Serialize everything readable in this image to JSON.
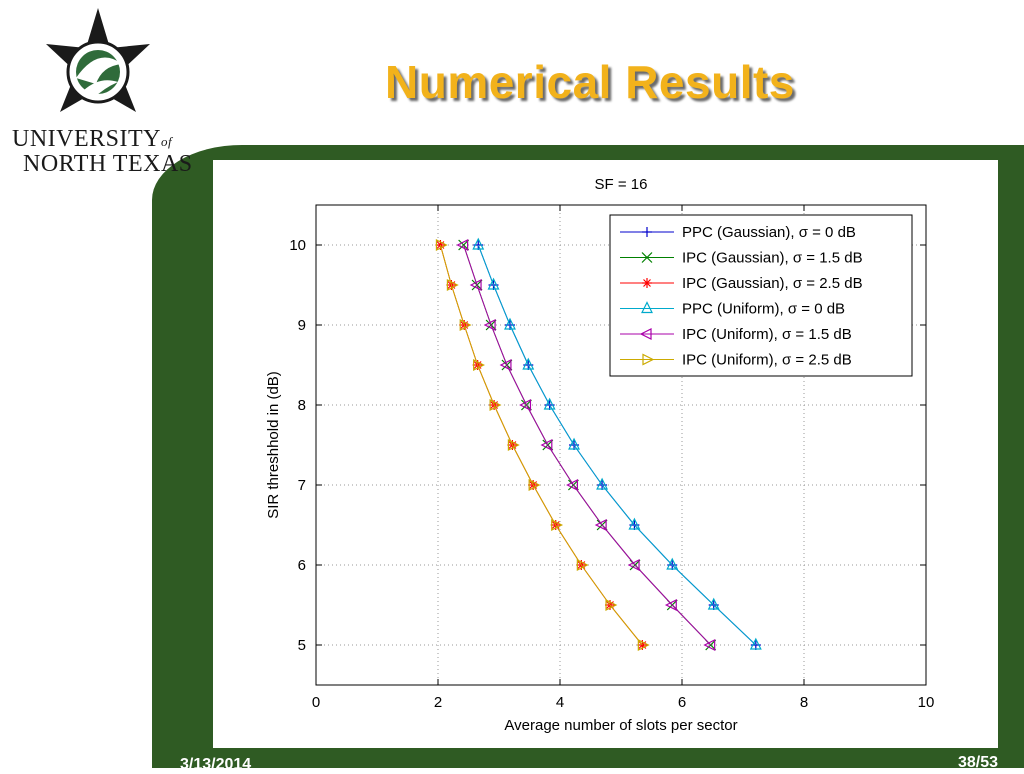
{
  "slide": {
    "title": "Numerical Results",
    "date": "3/13/2014",
    "page": "38/53"
  },
  "logo": {
    "line1_a": "UNIVERSITY",
    "line1_b": "of",
    "line2": "NORTH TEXAS"
  },
  "colors": {
    "band": "#2f5b23",
    "title": "#f2b21b"
  },
  "chart_data": {
    "type": "line",
    "title": "SF = 16",
    "xlabel": "Average number of slots per sector",
    "ylabel": "SIR threshhold in (dB)",
    "xlim": [
      0,
      10
    ],
    "ylim": [
      4.5,
      10.5
    ],
    "xticks": [
      0,
      2,
      4,
      6,
      8,
      10
    ],
    "yticks": [
      5,
      6,
      7,
      8,
      9,
      10
    ],
    "grid": true,
    "legend_position": "top-right",
    "y": [
      10,
      9.5,
      9,
      8.5,
      8,
      7.5,
      7,
      6.5,
      6,
      5.5,
      5
    ],
    "series": [
      {
        "name": "PPC (Gaussian), σ = 0 dB",
        "color": "#0000cc",
        "marker": "plus",
        "x": [
          2.66,
          2.91,
          3.18,
          3.48,
          3.83,
          4.23,
          4.69,
          5.22,
          5.84,
          6.52,
          7.21
        ]
      },
      {
        "name": "IPC (Gaussian), σ = 1.5 dB",
        "color": "#008000",
        "marker": "x",
        "x": [
          2.42,
          2.64,
          2.87,
          3.13,
          3.45,
          3.8,
          4.22,
          4.69,
          5.23,
          5.84,
          6.47
        ]
      },
      {
        "name": "IPC (Gaussian), σ = 2.5 dB",
        "color": "#ff0000",
        "marker": "star",
        "x": [
          2.04,
          2.22,
          2.43,
          2.65,
          2.92,
          3.22,
          3.56,
          3.93,
          4.35,
          4.82,
          5.35
        ]
      },
      {
        "name": "PPC (Uniform), σ = 0 dB",
        "color": "#00aacc",
        "marker": "triangle-up",
        "x": [
          2.66,
          2.91,
          3.18,
          3.48,
          3.83,
          4.23,
          4.69,
          5.22,
          5.84,
          6.52,
          7.21
        ]
      },
      {
        "name": "IPC (Uniform), σ = 1.5 dB",
        "color": "#aa00aa",
        "marker": "triangle-left",
        "x": [
          2.42,
          2.64,
          2.87,
          3.13,
          3.45,
          3.8,
          4.22,
          4.69,
          5.23,
          5.84,
          6.47
        ]
      },
      {
        "name": "IPC (Uniform), σ = 2.5 dB",
        "color": "#ccaa00",
        "marker": "triangle-right",
        "x": [
          2.04,
          2.22,
          2.43,
          2.65,
          2.92,
          3.22,
          3.56,
          3.93,
          4.35,
          4.82,
          5.35
        ]
      }
    ]
  }
}
